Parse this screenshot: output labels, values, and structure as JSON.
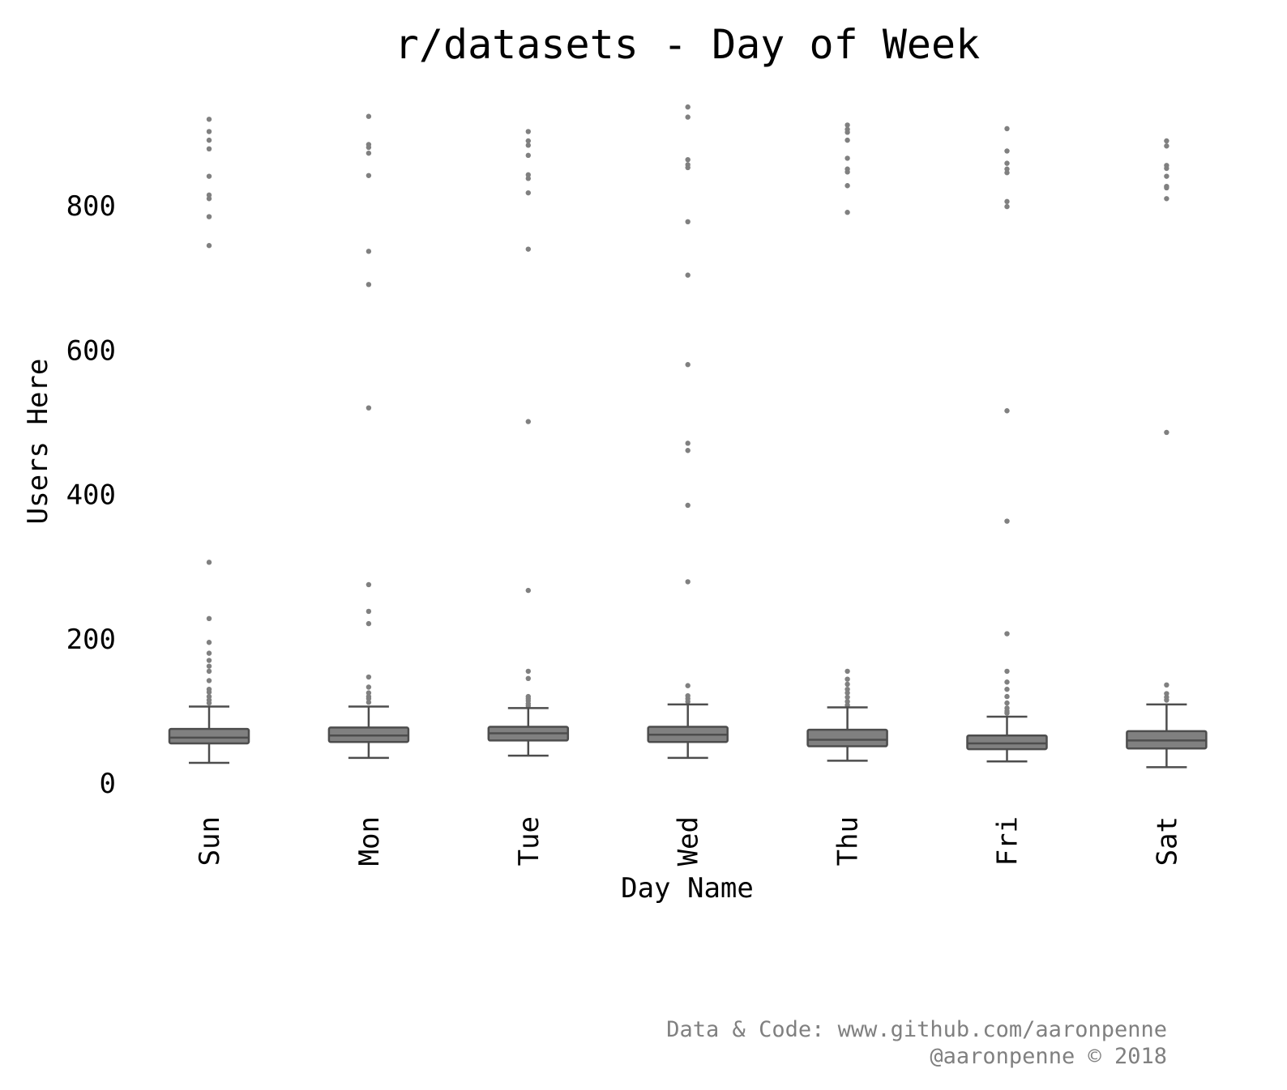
{
  "chart_data": {
    "type": "box",
    "title": "r/datasets - Day of Week",
    "xlabel": "Day Name",
    "ylabel": "Users Here",
    "ylim": [
      0,
      960
    ],
    "yticks": [
      0,
      200,
      400,
      600,
      800
    ],
    "grid": false,
    "categories": [
      "Sun",
      "Mon",
      "Tue",
      "Wed",
      "Thu",
      "Fri",
      "Sat"
    ],
    "boxes": [
      {
        "whisker_low": 28,
        "q1": 55,
        "median": 63,
        "q3": 75,
        "whisker_high": 106,
        "outliers": [
          920,
          903,
          891,
          879,
          841,
          815,
          810,
          785,
          745,
          306,
          228,
          195,
          180,
          170,
          162,
          155,
          142,
          130,
          126,
          120,
          115,
          111
        ]
      },
      {
        "whisker_low": 35,
        "q1": 57,
        "median": 66,
        "q3": 77,
        "whisker_high": 106,
        "outliers": [
          924,
          885,
          881,
          873,
          842,
          737,
          691,
          520,
          275,
          238,
          221,
          147,
          133,
          125,
          120,
          117,
          112
        ]
      },
      {
        "whisker_low": 38,
        "q1": 59,
        "median": 69,
        "q3": 78,
        "whisker_high": 104,
        "outliers": [
          903,
          890,
          884,
          870,
          843,
          838,
          818,
          740,
          501,
          267,
          155,
          145,
          120,
          117,
          114,
          110,
          107
        ]
      },
      {
        "whisker_low": 35,
        "q1": 57,
        "median": 67,
        "q3": 78,
        "whisker_high": 109,
        "outliers": [
          937,
          923,
          864,
          857,
          853,
          778,
          704,
          580,
          471,
          461,
          385,
          279,
          135,
          121,
          117,
          113
        ]
      },
      {
        "whisker_low": 31,
        "q1": 51,
        "median": 60,
        "q3": 74,
        "whisker_high": 105,
        "outliers": [
          912,
          906,
          902,
          891,
          866,
          851,
          847,
          828,
          791,
          155,
          144,
          137,
          130,
          125,
          119,
          113,
          108
        ]
      },
      {
        "whisker_low": 30,
        "q1": 47,
        "median": 55,
        "q3": 66,
        "whisker_high": 92,
        "outliers": [
          907,
          876,
          859,
          851,
          846,
          806,
          799,
          516,
          363,
          207,
          155,
          140,
          130,
          120,
          111,
          104,
          100,
          97
        ]
      },
      {
        "whisker_low": 22,
        "q1": 48,
        "median": 59,
        "q3": 72,
        "whisker_high": 109,
        "outliers": [
          890,
          883,
          856,
          852,
          841,
          827,
          825,
          810,
          486,
          136,
          124,
          119,
          115
        ]
      }
    ]
  },
  "footer": {
    "line1": "Data & Code: www.github.com/aaronpenne",
    "line2": "@aaronpenne © 2018"
  },
  "colors": {
    "box_fill": "#808080",
    "box_edge": "#4d4d4d",
    "outlier": "#808080",
    "text": "#000000",
    "footer_text": "#808080"
  }
}
